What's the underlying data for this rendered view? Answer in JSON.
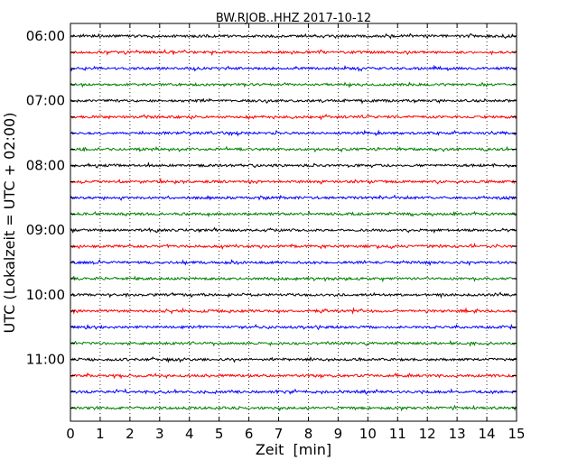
{
  "chart_data": {
    "type": "line",
    "title": "BW.RJOB..HHZ 2017-10-12",
    "xlabel": "Zeit  [min]",
    "ylabel": "UTC (Lokalzeit = UTC + 02:00)",
    "xlim": [
      0,
      15
    ],
    "x_ticks": [
      0,
      1,
      2,
      3,
      4,
      5,
      6,
      7,
      8,
      9,
      10,
      11,
      12,
      13,
      14,
      15
    ],
    "x_tick_labels": [
      "0",
      "1",
      "2",
      "3",
      "4",
      "5",
      "6",
      "7",
      "8",
      "9",
      "10",
      "11",
      "12",
      "13",
      "14",
      "15"
    ],
    "y_tick_labels": [
      "06:00",
      "07:00",
      "08:00",
      "09:00",
      "10:00",
      "11:00"
    ],
    "grid": "vertical dotted at each minute",
    "trace_interval_minutes": 15,
    "trace_colors": [
      "#000000",
      "#ff0000",
      "#0000ff",
      "#008000"
    ],
    "traces": [
      {
        "start": "06:00",
        "color": "#000000"
      },
      {
        "start": "06:15",
        "color": "#ff0000"
      },
      {
        "start": "06:30",
        "color": "#0000ff"
      },
      {
        "start": "06:45",
        "color": "#008000"
      },
      {
        "start": "07:00",
        "color": "#000000"
      },
      {
        "start": "07:15",
        "color": "#ff0000"
      },
      {
        "start": "07:30",
        "color": "#0000ff"
      },
      {
        "start": "07:45",
        "color": "#008000"
      },
      {
        "start": "08:00",
        "color": "#000000"
      },
      {
        "start": "08:15",
        "color": "#ff0000"
      },
      {
        "start": "08:30",
        "color": "#0000ff"
      },
      {
        "start": "08:45",
        "color": "#008000"
      },
      {
        "start": "09:00",
        "color": "#000000"
      },
      {
        "start": "09:15",
        "color": "#ff0000"
      },
      {
        "start": "09:30",
        "color": "#0000ff"
      },
      {
        "start": "09:45",
        "color": "#008000"
      },
      {
        "start": "10:00",
        "color": "#000000"
      },
      {
        "start": "10:15",
        "color": "#ff0000"
      },
      {
        "start": "10:30",
        "color": "#0000ff"
      },
      {
        "start": "10:45",
        "color": "#008000"
      },
      {
        "start": "11:00",
        "color": "#000000"
      },
      {
        "start": "11:15",
        "color": "#ff0000"
      },
      {
        "start": "11:30",
        "color": "#0000ff"
      },
      {
        "start": "11:45",
        "color": "#008000"
      }
    ]
  }
}
